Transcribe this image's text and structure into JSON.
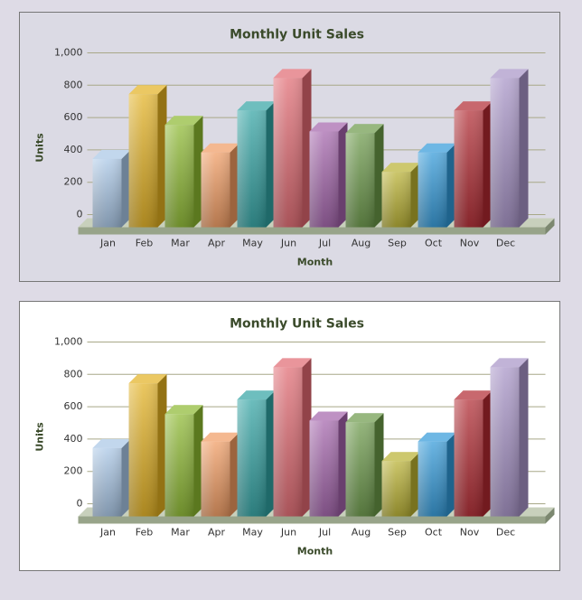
{
  "chart_data": [
    {
      "type": "bar3d",
      "title": "Monthly Unit Sales",
      "x_label": "Month",
      "y_label": "Units",
      "background": "#dbdae4",
      "categories": [
        "Jan",
        "Feb",
        "Mar",
        "Apr",
        "May",
        "Jun",
        "Jul",
        "Aug",
        "Sep",
        "Oct",
        "Nov",
        "Dec"
      ],
      "values": [
        400,
        800,
        610,
        440,
        700,
        900,
        570,
        560,
        320,
        440,
        700,
        900
      ],
      "colors": [
        "#a8c6e6",
        "#e2b020",
        "#8cb830",
        "#f09a60",
        "#30a2a2",
        "#e06870",
        "#a262aa",
        "#6a9848",
        "#b8b030",
        "#3098d8",
        "#b02830",
        "#a692c6"
      ],
      "ylim": [
        0,
        1000
      ],
      "yticks": [
        0,
        200,
        400,
        600,
        800,
        {
          "value": 1000,
          "label": "1,000"
        }
      ],
      "grid": true
    },
    {
      "type": "bar3d",
      "title": "Monthly Unit Sales",
      "x_label": "Month",
      "y_label": "Units",
      "background": "#ffffff",
      "categories": [
        "Jan",
        "Feb",
        "Mar",
        "Apr",
        "May",
        "Jun",
        "Jul",
        "Aug",
        "Sep",
        "Oct",
        "Nov",
        "Dec"
      ],
      "values": [
        400,
        800,
        610,
        440,
        700,
        900,
        570,
        560,
        320,
        440,
        700,
        900
      ],
      "colors": [
        "#a8c6e6",
        "#e2b020",
        "#8cb830",
        "#f09a60",
        "#30a2a2",
        "#e06870",
        "#a262aa",
        "#6a9848",
        "#b8b030",
        "#3098d8",
        "#b02830",
        "#a692c6"
      ],
      "ylim": [
        0,
        1000
      ],
      "yticks": [
        0,
        200,
        400,
        600,
        800,
        {
          "value": 1000,
          "label": "1,000"
        }
      ],
      "grid": true
    }
  ]
}
